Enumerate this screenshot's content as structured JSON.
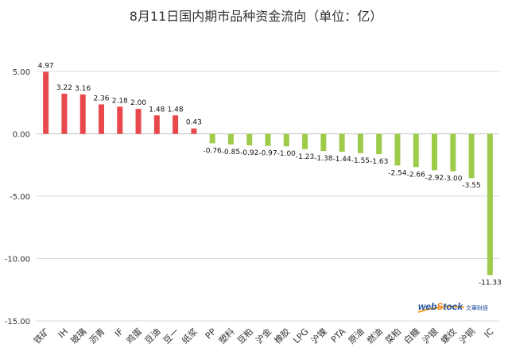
{
  "chart_data": {
    "type": "bar",
    "title": "8月11日国内期市品种资金流向（单位：亿）",
    "xlabel": "",
    "ylabel": "",
    "ylim": [
      -15,
      5
    ],
    "yticks": [
      5,
      0,
      -5,
      -10,
      -15
    ],
    "ytick_labels": [
      "5.00",
      "0.00",
      "-5.00",
      "-10.00",
      "-15.00"
    ],
    "grid": true,
    "legend": "none",
    "categories": [
      "铁矿",
      "IH",
      "玻璃",
      "沥青",
      "IF",
      "鸡蛋",
      "豆油",
      "豆一",
      "纸浆",
      "PP",
      "塑料",
      "豆粕",
      "沪金",
      "橡胶",
      "LPG",
      "沪镍",
      "PTA",
      "原油",
      "燃油",
      "菜粕",
      "白糖",
      "沪银",
      "螺纹",
      "沪铜",
      "IC"
    ],
    "values": [
      4.97,
      3.22,
      3.16,
      2.36,
      2.18,
      2.0,
      1.48,
      1.48,
      0.43,
      -0.76,
      -0.85,
      -0.92,
      -0.97,
      -1.0,
      -1.23,
      -1.38,
      -1.44,
      -1.55,
      -1.63,
      -2.54,
      -2.66,
      -2.92,
      -3.0,
      -3.55,
      -11.33
    ],
    "value_labels": [
      "4.97",
      "3.22",
      "3.16",
      "2.36",
      "2.18",
      "2.00",
      "1.48",
      "1.48",
      "0.43",
      "-0.76",
      "-0.85",
      "-0.92",
      "-0.97",
      "-1.00",
      "-1.23",
      "-1.38",
      "-1.44",
      "-1.55",
      "-1.63",
      "-2.54",
      "-2.66",
      "-2.92",
      "-3.00",
      "-3.55",
      "-11.33"
    ],
    "colors": {
      "positive": "#e8474b",
      "negative": "#9ecb4a",
      "grid": "#d9d9d9",
      "axis": "#bfbfbf"
    }
  },
  "watermark": {
    "brand": "webstock",
    "sub": "文華財經"
  }
}
